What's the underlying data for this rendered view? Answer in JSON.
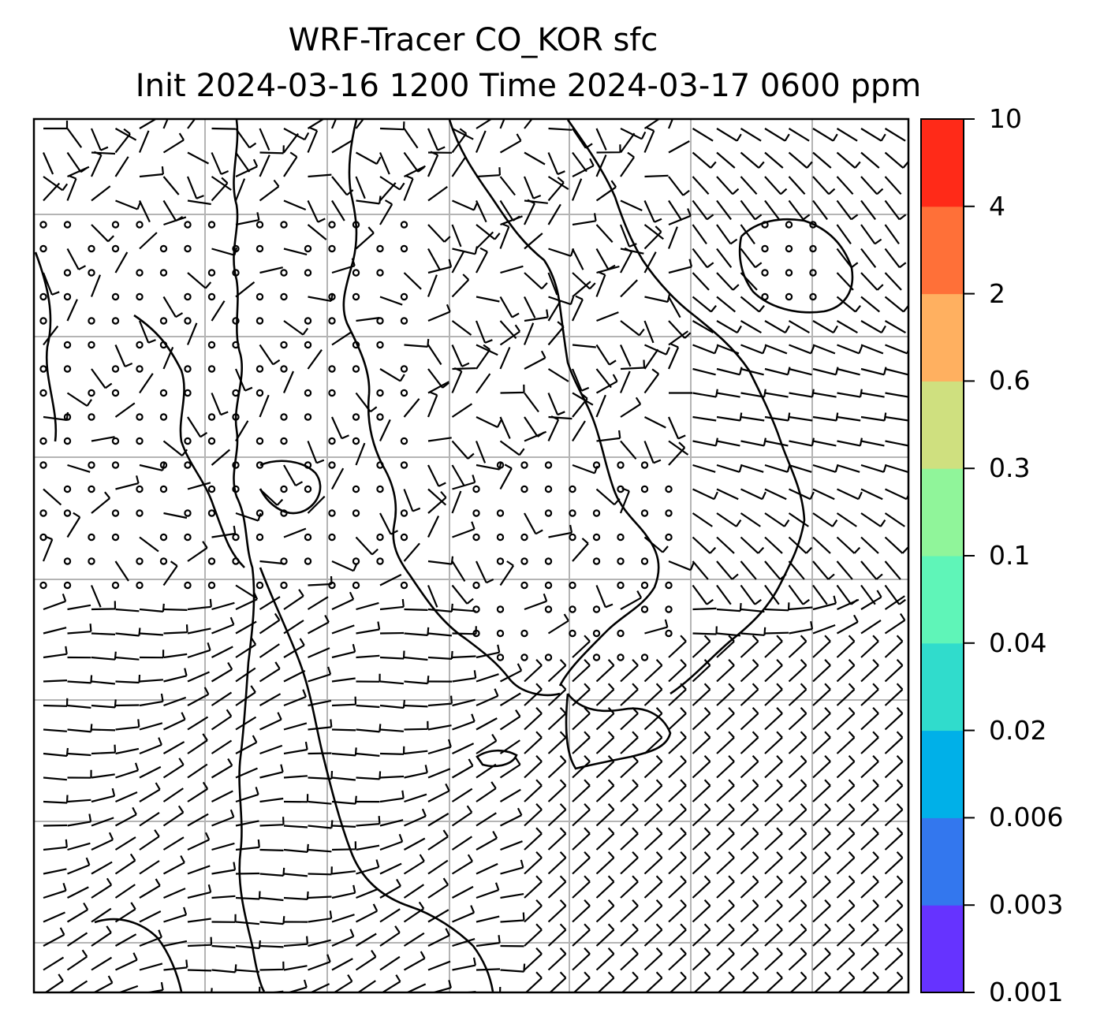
{
  "title": {
    "line1": "WRF-Tracer CO_KOR sfc",
    "line2": "Init 2024-03-16 1200 Time 2024-03-17 0600 ppm"
  },
  "colorbar": {
    "levels": [
      "0.001",
      "0.003",
      "0.006",
      "0.02",
      "0.04",
      "0.1",
      "0.3",
      "0.6",
      "2",
      "4",
      "10"
    ],
    "colors": [
      "#6633ff",
      "#3377ee",
      "#00b0e8",
      "#30dccc",
      "#5ff5b8",
      "#90f59a",
      "#cfe07f",
      "#ffb060",
      "#ff7038",
      "#ff2a18"
    ]
  },
  "map": {
    "frame_color": "#000000",
    "grid_color": "#b4b4b4",
    "coastline_color": "#000000",
    "barb_color": "#000000"
  }
}
